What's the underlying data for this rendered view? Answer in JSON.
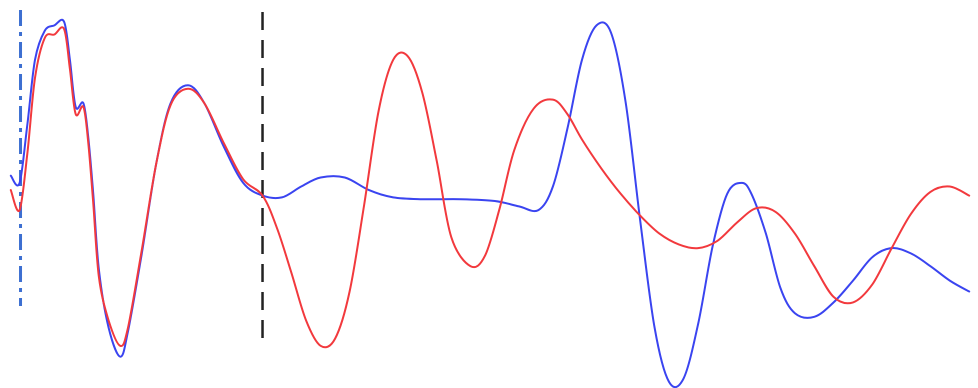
{
  "chart_data": {
    "type": "line",
    "xlim": [
      0,
      100
    ],
    "ylim": [
      -1,
      1
    ],
    "grid": false,
    "legend": "none",
    "colors": {
      "blue": "#3a44f0",
      "red": "#f2393d",
      "vline_dashdot": "#3d6fd1",
      "vline_dashed": "#222222"
    },
    "vlines": [
      {
        "x": 1.5,
        "style": "dash-dot",
        "color": "#3d6fd1"
      },
      {
        "x": 26.5,
        "style": "dashed",
        "color": "#222222"
      }
    ],
    "series": [
      {
        "color": "#3a44f0",
        "points": [
          [
            0.5,
            0.14
          ],
          [
            1.4,
            0.1
          ],
          [
            2.2,
            0.42
          ],
          [
            3.0,
            0.78
          ],
          [
            4.0,
            0.94
          ],
          [
            5.0,
            0.97
          ],
          [
            6.0,
            0.99
          ],
          [
            6.6,
            0.78
          ],
          [
            7.2,
            0.52
          ],
          [
            8.0,
            0.54
          ],
          [
            8.5,
            0.35
          ],
          [
            9.0,
            0.05
          ],
          [
            9.6,
            -0.38
          ],
          [
            10.6,
            -0.7
          ],
          [
            11.8,
            -0.86
          ],
          [
            12.6,
            -0.72
          ],
          [
            14.0,
            -0.3
          ],
          [
            15.5,
            0.2
          ],
          [
            17.0,
            0.54
          ],
          [
            18.8,
            0.64
          ],
          [
            20.5,
            0.54
          ],
          [
            22.5,
            0.3
          ],
          [
            24.5,
            0.1
          ],
          [
            26.5,
            0.03
          ],
          [
            28.5,
            0.02
          ],
          [
            30.5,
            0.08
          ],
          [
            32.5,
            0.13
          ],
          [
            35.0,
            0.13
          ],
          [
            37.5,
            0.06
          ],
          [
            40.0,
            0.02
          ],
          [
            43.0,
            0.01
          ],
          [
            47.0,
            0.01
          ],
          [
            50.5,
            0.0
          ],
          [
            53.0,
            -0.03
          ],
          [
            55.0,
            -0.05
          ],
          [
            56.5,
            0.08
          ],
          [
            58.0,
            0.4
          ],
          [
            59.5,
            0.78
          ],
          [
            61.0,
            0.97
          ],
          [
            62.5,
            0.93
          ],
          [
            64.0,
            0.55
          ],
          [
            65.5,
            -0.1
          ],
          [
            67.0,
            -0.7
          ],
          [
            68.5,
            -1.0
          ],
          [
            70.0,
            -0.98
          ],
          [
            71.5,
            -0.68
          ],
          [
            73.0,
            -0.25
          ],
          [
            74.5,
            0.04
          ],
          [
            76.0,
            0.1
          ],
          [
            77.0,
            0.04
          ],
          [
            78.5,
            -0.18
          ],
          [
            80.0,
            -0.48
          ],
          [
            81.5,
            -0.62
          ],
          [
            83.5,
            -0.64
          ],
          [
            85.5,
            -0.56
          ],
          [
            87.5,
            -0.44
          ],
          [
            89.5,
            -0.31
          ],
          [
            91.5,
            -0.26
          ],
          [
            93.5,
            -0.29
          ],
          [
            95.5,
            -0.36
          ],
          [
            97.5,
            -0.44
          ],
          [
            99.5,
            -0.5
          ]
        ]
      },
      {
        "color": "#f2393d",
        "points": [
          [
            0.5,
            0.06
          ],
          [
            1.4,
            -0.05
          ],
          [
            2.2,
            0.26
          ],
          [
            3.0,
            0.68
          ],
          [
            4.0,
            0.9
          ],
          [
            5.0,
            0.92
          ],
          [
            6.0,
            0.95
          ],
          [
            6.6,
            0.73
          ],
          [
            7.2,
            0.48
          ],
          [
            8.0,
            0.52
          ],
          [
            8.5,
            0.32
          ],
          [
            9.0,
            0.0
          ],
          [
            9.6,
            -0.42
          ],
          [
            10.6,
            -0.66
          ],
          [
            11.8,
            -0.8
          ],
          [
            12.6,
            -0.7
          ],
          [
            14.0,
            -0.28
          ],
          [
            15.5,
            0.2
          ],
          [
            17.0,
            0.53
          ],
          [
            18.8,
            0.62
          ],
          [
            20.5,
            0.54
          ],
          [
            22.5,
            0.32
          ],
          [
            24.5,
            0.12
          ],
          [
            26.5,
            0.03
          ],
          [
            28.0,
            -0.15
          ],
          [
            29.5,
            -0.4
          ],
          [
            31.0,
            -0.66
          ],
          [
            32.5,
            -0.8
          ],
          [
            34.0,
            -0.76
          ],
          [
            35.5,
            -0.5
          ],
          [
            37.0,
            -0.02
          ],
          [
            38.5,
            0.5
          ],
          [
            40.0,
            0.78
          ],
          [
            41.5,
            0.8
          ],
          [
            43.0,
            0.6
          ],
          [
            44.5,
            0.22
          ],
          [
            46.0,
            -0.2
          ],
          [
            48.0,
            -0.36
          ],
          [
            49.5,
            -0.3
          ],
          [
            51.0,
            -0.04
          ],
          [
            52.5,
            0.28
          ],
          [
            54.5,
            0.51
          ],
          [
            56.5,
            0.56
          ],
          [
            58.0,
            0.48
          ],
          [
            59.5,
            0.34
          ],
          [
            61.5,
            0.18
          ],
          [
            63.5,
            0.04
          ],
          [
            65.5,
            -0.08
          ],
          [
            67.5,
            -0.18
          ],
          [
            69.5,
            -0.24
          ],
          [
            71.5,
            -0.26
          ],
          [
            73.5,
            -0.22
          ],
          [
            75.5,
            -0.12
          ],
          [
            77.5,
            -0.04
          ],
          [
            79.5,
            -0.06
          ],
          [
            81.5,
            -0.18
          ],
          [
            83.5,
            -0.36
          ],
          [
            85.5,
            -0.53
          ],
          [
            87.5,
            -0.56
          ],
          [
            89.5,
            -0.46
          ],
          [
            91.5,
            -0.26
          ],
          [
            93.5,
            -0.07
          ],
          [
            95.5,
            0.05
          ],
          [
            97.5,
            0.08
          ],
          [
            99.5,
            0.03
          ]
        ]
      }
    ]
  }
}
